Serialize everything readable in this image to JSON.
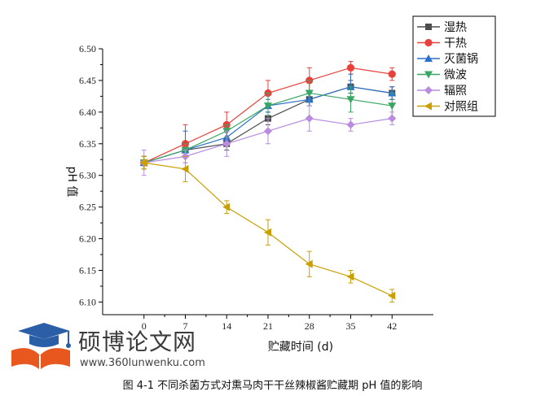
{
  "chart_data": {
    "type": "line",
    "xlabel": "贮藏时间 (d)",
    "ylabel": "pH 值",
    "x": [
      0,
      7,
      14,
      21,
      28,
      35,
      42
    ],
    "xlim": [
      -7,
      49
    ],
    "ylim": [
      6.08,
      6.5
    ],
    "yticks": [
      6.1,
      6.15,
      6.2,
      6.25,
      6.3,
      6.35,
      6.4,
      6.45,
      6.5
    ],
    "grid": false,
    "legend_position": "top-right",
    "series": [
      {
        "name": "湿热",
        "color": "#4d4d4d",
        "marker": "square",
        "values": [
          6.32,
          6.34,
          6.35,
          6.39,
          6.42,
          6.44,
          6.43
        ],
        "errors": [
          0.01,
          0.01,
          0.01,
          0.01,
          0.01,
          0.01,
          0.01
        ]
      },
      {
        "name": "干热",
        "color": "#e8413c",
        "marker": "circle",
        "values": [
          6.32,
          6.35,
          6.38,
          6.43,
          6.45,
          6.47,
          6.46
        ],
        "errors": [
          0.01,
          0.03,
          0.02,
          0.02,
          0.02,
          0.01,
          0.01
        ]
      },
      {
        "name": "灭菌锅",
        "color": "#2a6fc9",
        "marker": "triangle-up",
        "values": [
          6.32,
          6.34,
          6.36,
          6.41,
          6.42,
          6.44,
          6.43
        ],
        "errors": [
          0.01,
          0.03,
          0.01,
          0.01,
          0.01,
          0.02,
          0.01
        ]
      },
      {
        "name": "微波",
        "color": "#3aa663",
        "marker": "triangle-down",
        "values": [
          6.32,
          6.34,
          6.37,
          6.41,
          6.43,
          6.42,
          6.41
        ],
        "errors": [
          0.01,
          0.01,
          0.01,
          0.02,
          0.02,
          0.02,
          0.02
        ]
      },
      {
        "name": "辐照",
        "color": "#b98ce0",
        "marker": "diamond",
        "values": [
          6.32,
          6.33,
          6.35,
          6.37,
          6.39,
          6.38,
          6.39
        ],
        "errors": [
          0.02,
          0.01,
          0.02,
          0.02,
          0.02,
          0.01,
          0.01
        ]
      },
      {
        "name": "对照组",
        "color": "#c9a000",
        "marker": "triangle-left",
        "values": [
          6.32,
          6.31,
          6.25,
          6.21,
          6.16,
          6.14,
          6.11
        ],
        "errors": [
          0.01,
          0.02,
          0.01,
          0.02,
          0.02,
          0.01,
          0.01
        ]
      }
    ]
  },
  "caption": "图 4-1 不同杀菌方式对熏马肉干干丝辣椒酱贮藏期 pH 值的影响",
  "watermark": {
    "title": "硕博论文网",
    "url": "www.360lunwenku.com",
    "icon": "graduation-cap-book-icon"
  }
}
